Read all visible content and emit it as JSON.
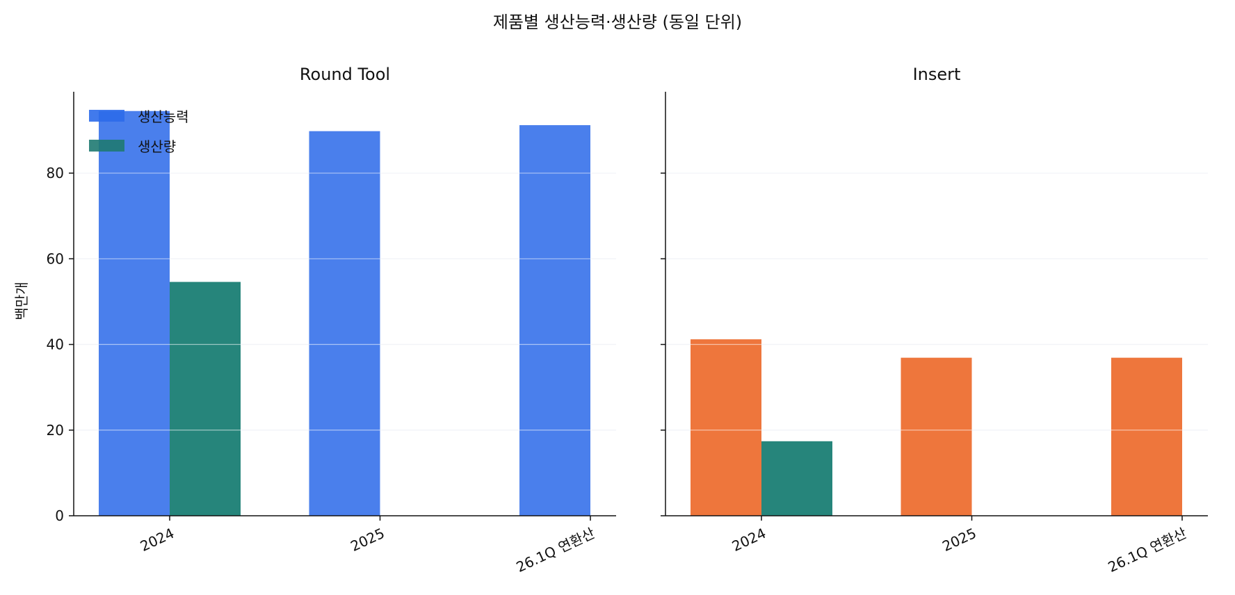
{
  "chart_data": {
    "type": "bar",
    "title": "제품별 생산능력·생산량 (동일 단위)",
    "ylabel": "백만개",
    "ylim": [
      0,
      99
    ],
    "yticks": [
      0,
      20,
      40,
      60,
      80
    ],
    "grid": true,
    "legend": {
      "position": "top-left",
      "entries": [
        {
          "label": "생산능력",
          "color": "#2c6bea"
        },
        {
          "label": "생산량",
          "color": "#1f7a72"
        }
      ]
    },
    "panels": [
      {
        "title": "Round Tool",
        "categories": [
          "2024",
          "2025",
          "26.1Q 연환산"
        ],
        "series": [
          {
            "name": "생산능력",
            "values": [
              94.5,
              89.8,
              91.2
            ],
            "color": "#4a7fec"
          },
          {
            "name": "생산량",
            "values": [
              54.6,
              null,
              null
            ],
            "color": "#26857b"
          }
        ]
      },
      {
        "title": "Insert",
        "categories": [
          "2024",
          "2025",
          "26.1Q 연환산"
        ],
        "series": [
          {
            "name": "생산능력",
            "values": [
              41.2,
              36.9,
              36.9
            ],
            "color": "#ee763c"
          },
          {
            "name": "생산량",
            "values": [
              17.4,
              null,
              null
            ],
            "color": "#26857b"
          }
        ]
      }
    ]
  }
}
